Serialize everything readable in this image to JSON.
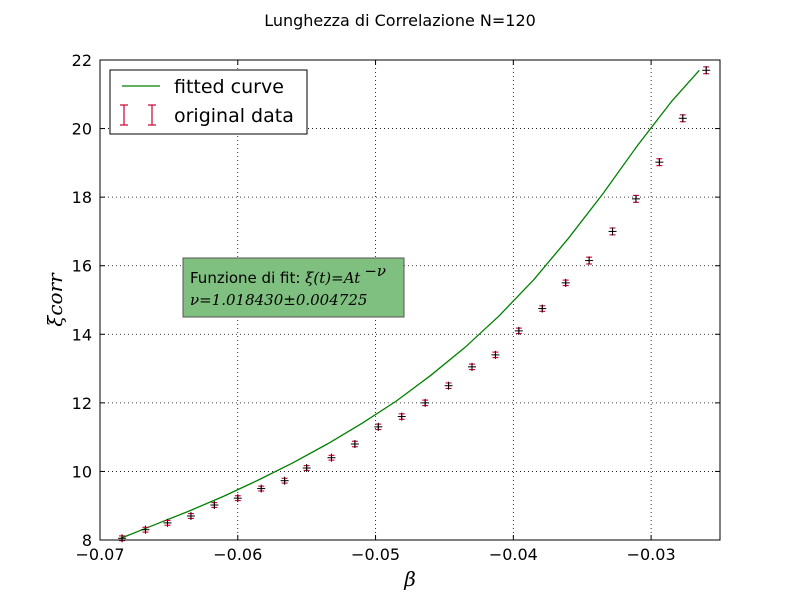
{
  "chart_data": {
    "type": "scatter",
    "title": "Lunghezza di Correlazione N=120",
    "xlabel": "β",
    "ylabel": "ξcorr",
    "xlim": [
      -0.07,
      -0.025
    ],
    "ylim": [
      8,
      22
    ],
    "xticks": [
      "−0.07",
      "−0.06",
      "−0.05",
      "−0.04",
      "−0.03"
    ],
    "xtick_values": [
      -0.07,
      -0.06,
      -0.05,
      -0.04,
      -0.03
    ],
    "yticks": [
      "8",
      "10",
      "12",
      "14",
      "16",
      "18",
      "20",
      "22"
    ],
    "ytick_values": [
      8,
      10,
      12,
      14,
      16,
      18,
      20,
      22
    ],
    "grid": true,
    "legend_position": "top-left",
    "series": [
      {
        "name": "fitted curve",
        "kind": "line",
        "color": "#008000",
        "x": [
          -0.0685,
          -0.066,
          -0.0635,
          -0.061,
          -0.0585,
          -0.056,
          -0.0535,
          -0.051,
          -0.0485,
          -0.046,
          -0.0435,
          -0.041,
          -0.0385,
          -0.036,
          -0.0335,
          -0.031,
          -0.0285,
          -0.0265
        ],
        "y": [
          8.05,
          8.45,
          8.85,
          9.28,
          9.75,
          10.25,
          10.8,
          11.4,
          12.05,
          12.8,
          13.62,
          14.55,
          15.6,
          16.8,
          18.1,
          19.5,
          20.8,
          21.7
        ]
      },
      {
        "name": "original data",
        "kind": "errorbar",
        "color": "#cc0033",
        "x": [
          -0.0684,
          -0.0667,
          -0.0651,
          -0.0634,
          -0.0617,
          -0.06,
          -0.0583,
          -0.0566,
          -0.055,
          -0.0532,
          -0.0515,
          -0.0498,
          -0.0481,
          -0.0464,
          -0.0447,
          -0.043,
          -0.0413,
          -0.0396,
          -0.0379,
          -0.0362,
          -0.0345,
          -0.0328,
          -0.0311,
          -0.0294,
          -0.0277,
          -0.026
        ],
        "y": [
          8.05,
          8.3,
          8.5,
          8.7,
          9.02,
          9.22,
          9.5,
          9.73,
          10.1,
          10.4,
          10.8,
          11.3,
          11.6,
          12.0,
          12.5,
          13.05,
          13.4,
          14.1,
          14.75,
          15.5,
          16.15,
          17.0,
          17.95,
          19.02,
          20.3,
          21.7
        ],
        "yerr": [
          0.07,
          0.07,
          0.07,
          0.07,
          0.07,
          0.07,
          0.07,
          0.07,
          0.07,
          0.07,
          0.08,
          0.08,
          0.08,
          0.08,
          0.08,
          0.08,
          0.08,
          0.08,
          0.08,
          0.08,
          0.1,
          0.1,
          0.1,
          0.1,
          0.1,
          0.1
        ]
      }
    ],
    "annotation": {
      "line1_text": "Funzione di fit: ",
      "line1_math": "ξ(t)=At",
      "line1_exp": "−ν",
      "line2_math": "ν=1.018430±0.004725",
      "box_color": "#7fbf7f"
    }
  }
}
